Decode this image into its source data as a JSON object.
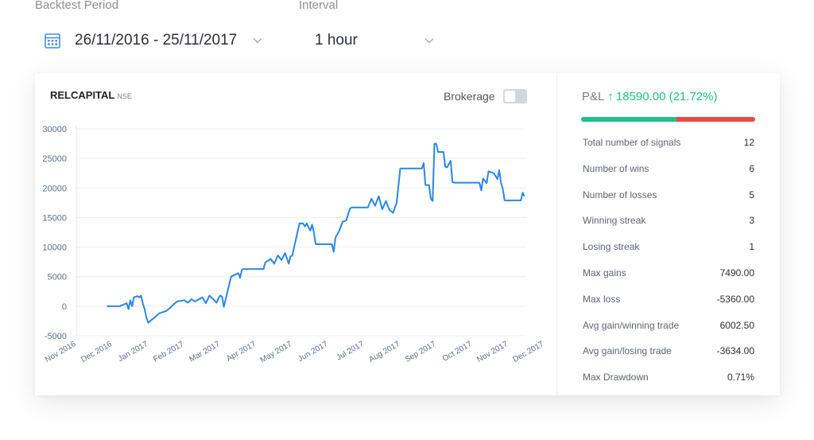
{
  "filters": {
    "period_label": "Backtest Period",
    "period_value": "26/11/2016 - 25/11/2017",
    "interval_label": "Interval",
    "interval_value": "1 hour",
    "calendar_icon": "calendar-icon",
    "chevron_icon": "chevron-down-icon"
  },
  "card": {
    "symbol": "RELCAPITAL",
    "exchange": "NSE",
    "brokerage_label": "Brokerage",
    "brokerage_on": false
  },
  "pl": {
    "label": "P&L",
    "arrow": "↑",
    "value": "18590.00 (21.72%)",
    "win_fraction": 0.55,
    "colors": {
      "positive": "#22c184",
      "negative": "#e74b48"
    }
  },
  "stats": [
    {
      "label": "Total number of signals",
      "value": "12"
    },
    {
      "label": "Number of wins",
      "value": "6"
    },
    {
      "label": "Number of losses",
      "value": "5"
    },
    {
      "label": "Winning streak",
      "value": "3"
    },
    {
      "label": "Losing streak",
      "value": "1"
    },
    {
      "label": "Max gains",
      "value": "7490.00"
    },
    {
      "label": "Max loss",
      "value": "-5360.00"
    },
    {
      "label": "Avg gain/winning trade",
      "value": "6002.50"
    },
    {
      "label": "Avg gain/losing trade",
      "value": "-3634.00"
    },
    {
      "label": "Max Drawdown",
      "value": "0.71%"
    }
  ],
  "chart_data": {
    "type": "line",
    "title": "",
    "color": "#2b87e3",
    "ylim": [
      -5000,
      30000
    ],
    "yticks": [
      30000,
      25000,
      20000,
      15000,
      10000,
      5000,
      0,
      -5000
    ],
    "xlim": [
      0,
      12.5
    ],
    "xticks": [
      "Nov 2016",
      "Dec 2016",
      "Jan 2017",
      "Feb 2017",
      "Mar 2017",
      "Apr 2017",
      "May 2017",
      "Jun 2017",
      "Jul 2017",
      "Aug 2017",
      "Sep 2017",
      "Oct 2017",
      "Nov 2017",
      "Dec 2017"
    ],
    "grid": true,
    "series": [
      {
        "x": [
          0.85,
          1.2,
          1.4,
          1.45,
          1.5,
          1.55,
          1.6,
          1.7,
          1.75,
          1.8,
          1.85,
          1.9,
          1.95,
          2.0,
          2.05,
          2.2,
          2.3,
          2.5,
          2.6,
          2.7,
          2.8,
          3.0,
          3.1,
          3.2,
          3.3,
          3.5,
          3.6,
          3.7,
          3.8,
          3.9,
          3.95,
          4.0,
          4.05,
          4.1,
          4.3,
          4.5,
          4.55,
          4.6,
          4.65,
          5.2,
          5.25,
          5.4,
          5.5,
          5.6,
          5.7,
          5.8,
          5.9,
          5.95,
          6.0,
          6.2,
          6.3,
          6.35,
          6.4,
          6.5,
          6.55,
          6.6,
          6.65,
          7.1,
          7.15,
          7.2,
          7.3,
          7.4,
          7.5,
          7.6,
          7.65,
          8.1,
          8.2,
          8.3,
          8.4,
          8.5,
          8.6,
          8.7,
          8.8,
          8.9,
          9.0,
          9.05,
          9.1,
          9.6,
          9.65,
          9.7,
          9.8,
          9.85,
          9.9,
          9.95,
          10.0,
          10.05,
          10.2,
          10.25,
          10.3,
          10.4,
          10.45,
          10.5,
          11.2,
          11.25,
          11.3,
          11.4,
          11.45,
          11.6,
          11.7,
          11.75,
          11.8,
          11.85,
          11.9,
          12.35,
          12.4,
          12.45
        ],
        "y": [
          0,
          0,
          500,
          -500,
          1000,
          0,
          1500,
          1700,
          1500,
          1800,
          400,
          -500,
          -2000,
          -2800,
          -2500,
          -1800,
          -1200,
          -800,
          -300,
          300,
          800,
          1000,
          600,
          1200,
          800,
          1500,
          500,
          1800,
          1200,
          600,
          1400,
          1800,
          1600,
          -100,
          5000,
          5600,
          4800,
          6200,
          6300,
          6300,
          7400,
          8000,
          7200,
          8600,
          7800,
          9000,
          7200,
          8400,
          8600,
          14000,
          14000,
          13500,
          14000,
          12800,
          13800,
          12500,
          10500,
          10500,
          9200,
          11600,
          12700,
          14300,
          14500,
          16500,
          16700,
          16700,
          18200,
          17000,
          18600,
          16400,
          17800,
          16300,
          15800,
          17500,
          23300,
          23300,
          23300,
          23300,
          24200,
          20500,
          20500,
          18200,
          17800,
          27500,
          27500,
          26100,
          26100,
          23600,
          23500,
          24600,
          21000,
          20900,
          20900,
          19600,
          21600,
          20800,
          22800,
          22500,
          21500,
          23000,
          20900,
          19800,
          17900,
          17900,
          19200,
          18600
        ]
      }
    ]
  }
}
